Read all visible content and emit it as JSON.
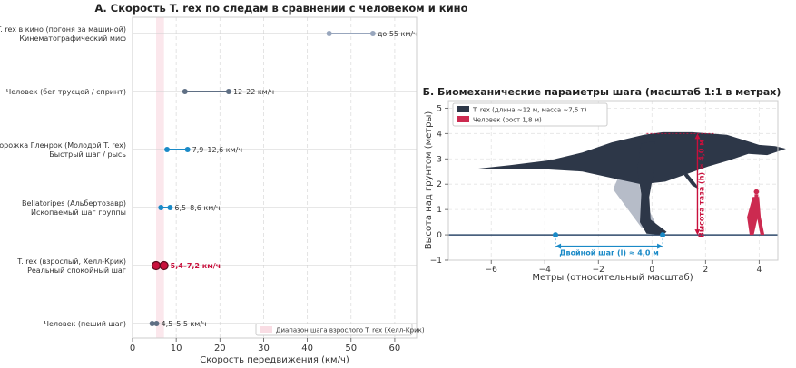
{
  "chart_data": [
    {
      "type": "dumbbell",
      "title": "А. Скорость T. rex по следам в сравнении с человеком и кино",
      "xlabel": "Скорость передвижения (км/ч)",
      "ylabel": "",
      "xlim": [
        0,
        65
      ],
      "xticks": [
        0,
        10,
        20,
        30,
        40,
        50,
        60
      ],
      "grid": "x-dashed",
      "legend_position": "bottom-right",
      "band": {
        "label": "Диапазон шага взрослого T. rex (Хелл-Крик)",
        "range": [
          5.4,
          7.2
        ],
        "color": "#e05578"
      },
      "rows": [
        {
          "label": "T. rex в кино (погоня за машиной)\nКинематографический миф",
          "min": 45,
          "max": 55,
          "annotation": "до 55 км/ч",
          "color": "#98a6bd",
          "highlight": false
        },
        {
          "label": "Человек (бег трусцой / спринт)",
          "min": 12,
          "max": 22,
          "annotation": "12–22 км/ч",
          "color": "#5f6f84",
          "highlight": false
        },
        {
          "label": "Дорожка Гленрок (Молодой T. rex)\nБыстрый шаг / рысь",
          "min": 7.9,
          "max": 12.6,
          "annotation": "7,9–12,6 км/ч",
          "color": "#1a8ac7",
          "highlight": false
        },
        {
          "label": "Bellatoripes (Альбертозавр)\nИскопаемый шаг группы",
          "min": 6.5,
          "max": 8.6,
          "annotation": "6,5–8,6 км/ч",
          "color": "#1a8ac7",
          "highlight": false
        },
        {
          "label": "T. rex (взрослый, Хелл-Крик)\nРеальный спокойный шаг",
          "min": 5.4,
          "max": 7.2,
          "annotation": "5,4–7,2 км/ч",
          "color": "#c8103c",
          "highlight": true
        },
        {
          "label": "Человек (пеший шаг)",
          "min": 4.5,
          "max": 5.5,
          "annotation": "4,5–5,5 км/ч",
          "color": "#5f6f84",
          "highlight": false
        }
      ]
    },
    {
      "type": "diagram",
      "title": "Б. Биомеханические параметры шага (масштаб 1:1 в метрах)",
      "xlabel": "Метры (относительный масштаб)",
      "ylabel": "Высота над грунтом (метры)",
      "xlim": [
        -7.6,
        4.7
      ],
      "ylim": [
        -1,
        5.3
      ],
      "xticks": [
        -6,
        -4,
        -2,
        0,
        2,
        4
      ],
      "yticks": [
        -1,
        0,
        1,
        2,
        3,
        4,
        5
      ],
      "grid": "both-dashed",
      "legend_position": "top-left",
      "legend": [
        {
          "label": "T. rex (длина ~12 м, масса ~7,5 т)",
          "color": "#2d3748"
        },
        {
          "label": "Человек (рост 1,8 м)",
          "color": "#cc2a50"
        }
      ],
      "stride": {
        "label": "Двойной шаг (l) ≈ 4,0 м",
        "start": -3.6,
        "end": 0.4,
        "color": "#1a8ac7"
      },
      "hip_height": {
        "label": "Высота таза (h) ≈ 4,0 м",
        "x": 1.7,
        "value": 4.0,
        "color": "#c8103c"
      },
      "human_height": 1.8
    }
  ]
}
